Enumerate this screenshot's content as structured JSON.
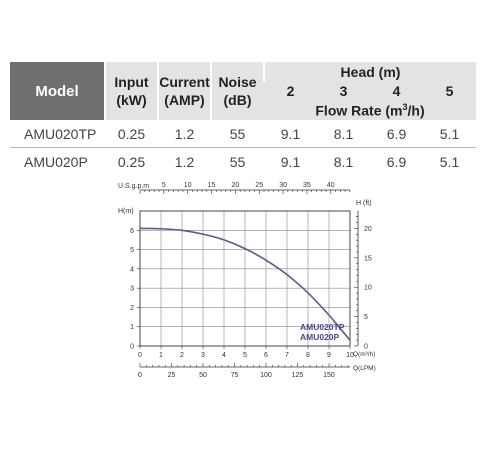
{
  "table": {
    "headers": {
      "model": "Model",
      "input": [
        "Input",
        "(kW)"
      ],
      "current": [
        "Current",
        "(AMP)"
      ],
      "noise": [
        "Noise",
        "(dB)"
      ],
      "head": "Head (m)",
      "head_values": [
        "2",
        "3",
        "4",
        "5"
      ],
      "flow_rate": "Flow Rate (m",
      "flow_rate_sup": "3",
      "flow_rate_end": "/h)"
    },
    "rows": [
      {
        "model": "AMU020TP",
        "input": "0.25",
        "current": "1.2",
        "noise": "55",
        "flow": [
          "9.1",
          "8.1",
          "6.9",
          "5.1"
        ]
      },
      {
        "model": "AMU020P",
        "input": "0.25",
        "current": "1.2",
        "noise": "55",
        "flow": [
          "9.1",
          "8.1",
          "6.9",
          "5.1"
        ]
      }
    ]
  },
  "chart_data": {
    "type": "line",
    "series": [
      {
        "name": "AMU020TP / AMU020P",
        "x": [
          0,
          1,
          2,
          3,
          4,
          5,
          6,
          7,
          8,
          9,
          9.5,
          10
        ],
        "y": [
          6.1,
          6.08,
          6.0,
          5.8,
          5.5,
          5.05,
          4.45,
          3.7,
          2.75,
          1.6,
          0.95,
          0.3
        ]
      }
    ],
    "series_labels": [
      "AMU020TP",
      "AMU020P"
    ],
    "xlabel": "Q(m³/h)",
    "ylabel": "H(m)",
    "ylabel_right": "H (ft)",
    "top_axis_label": "U.S.g.p.m",
    "bottom_axis2_label": "Q(LPM)",
    "xlim": [
      0,
      10
    ],
    "ylim": [
      0,
      7
    ],
    "x_ticks": [
      0,
      1,
      2,
      3,
      4,
      5,
      6,
      7,
      8,
      9,
      10
    ],
    "y_ticks": [
      0,
      1,
      2,
      3,
      4,
      5,
      6
    ],
    "right_ticks": [
      0,
      5,
      10,
      15,
      20
    ],
    "top_ticks": [
      5,
      10,
      15,
      20,
      25,
      30,
      35,
      40
    ],
    "lpm_ticks": [
      0,
      25,
      50,
      75,
      100,
      125,
      150
    ],
    "grid": true,
    "colors": {
      "curve": "#5b5a8e",
      "label": "#4a4a8a",
      "grid": "#888888",
      "axis": "#333333"
    }
  }
}
